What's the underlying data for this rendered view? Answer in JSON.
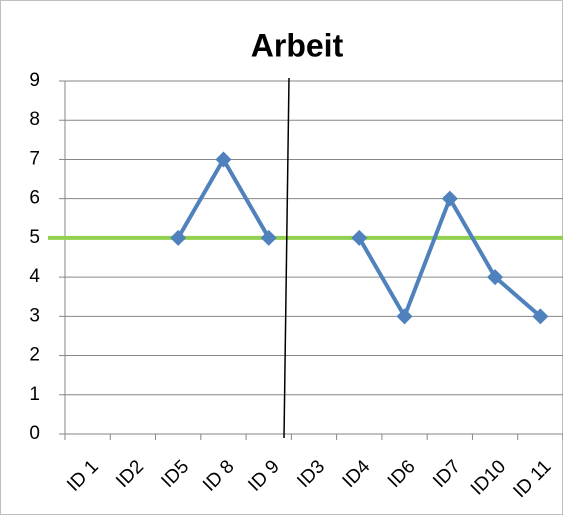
{
  "chart_data": {
    "type": "line",
    "title": "Arbeit",
    "categories": [
      "ID 1",
      "ID2",
      "ID5",
      "ID 8",
      "ID 9",
      "ID3",
      "ID4",
      "ID6",
      "ID7",
      "ID10",
      "ID 11"
    ],
    "series": [
      {
        "color": "#4f81bd",
        "values": [
          null,
          null,
          5,
          7,
          5,
          null,
          5,
          3,
          6,
          4,
          3
        ]
      }
    ],
    "reference_line": {
      "value": 5,
      "color": "#92d050"
    },
    "ylim": [
      0,
      9
    ],
    "yticks": [
      0,
      1,
      2,
      3,
      4,
      5,
      6,
      7,
      8,
      9
    ],
    "grid": true
  }
}
